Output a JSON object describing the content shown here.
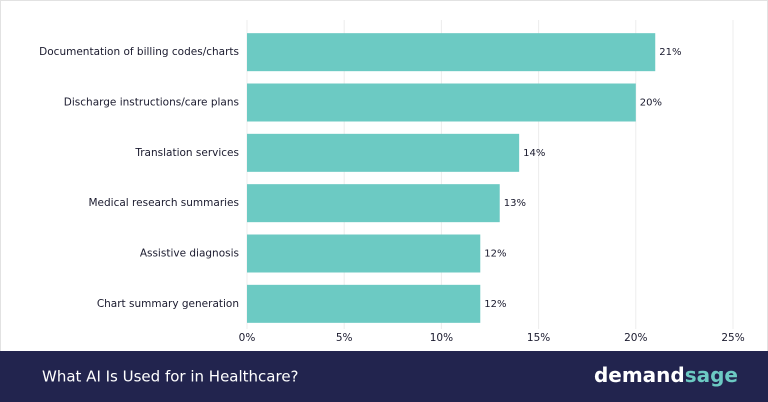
{
  "chart_data": {
    "type": "hbar",
    "title": "What AI Is Used for in Healthcare?",
    "categories": [
      "Documentation of billing codes/charts",
      "Discharge instructions/care plans",
      "Translation services",
      "Medical research summaries",
      "Assistive diagnosis",
      "Chart summary generation"
    ],
    "values": [
      21,
      20,
      14,
      13,
      12,
      12
    ],
    "value_labels": [
      "21%",
      "20%",
      "14%",
      "13%",
      "12%",
      "12%"
    ],
    "color": "#6ccac3",
    "xlim": [
      0,
      25
    ],
    "xticks": [
      {
        "value": 0,
        "label": "0%"
      },
      {
        "value": 5,
        "label": "5%"
      },
      {
        "value": 10,
        "label": "10%"
      },
      {
        "value": 15,
        "label": "15%"
      },
      {
        "value": 20,
        "label": "20%"
      },
      {
        "value": 25,
        "label": "25%"
      }
    ],
    "grid": true
  },
  "footer": {
    "brand": [
      "demand",
      "sage"
    ]
  }
}
